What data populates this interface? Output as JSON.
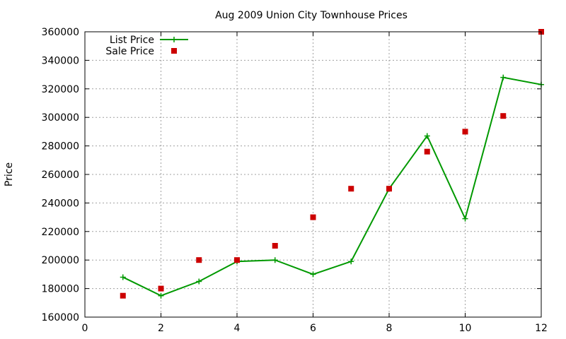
{
  "chart_data": {
    "type": "line",
    "title": "Aug 2009 Union City Townhouse Prices",
    "xlabel": "",
    "ylabel": "Price",
    "xlim": [
      0,
      12
    ],
    "ylim": [
      160000,
      360000
    ],
    "x_ticks": [
      0,
      2,
      4,
      6,
      8,
      10,
      12
    ],
    "y_ticks": [
      160000,
      180000,
      200000,
      220000,
      240000,
      260000,
      280000,
      300000,
      320000,
      340000,
      360000
    ],
    "grid": true,
    "legend_position": "top-left",
    "series": [
      {
        "name": "List Price",
        "type": "line",
        "marker": "plus",
        "color": "#009900",
        "x": [
          1,
          2,
          3,
          4,
          5,
          6,
          7,
          8,
          9,
          10,
          11,
          12
        ],
        "y": [
          188000,
          175000,
          185000,
          199000,
          200000,
          190000,
          199000,
          250000,
          287000,
          229000,
          328000,
          323000
        ]
      },
      {
        "name": "Sale Price",
        "type": "scatter",
        "marker": "square",
        "color": "#cc0000",
        "x": [
          1,
          2,
          3,
          4,
          5,
          6,
          7,
          8,
          9,
          10,
          11,
          12
        ],
        "y": [
          175000,
          180000,
          200000,
          200000,
          210000,
          230000,
          250000,
          250000,
          276000,
          290000,
          301000,
          360000
        ]
      }
    ]
  }
}
